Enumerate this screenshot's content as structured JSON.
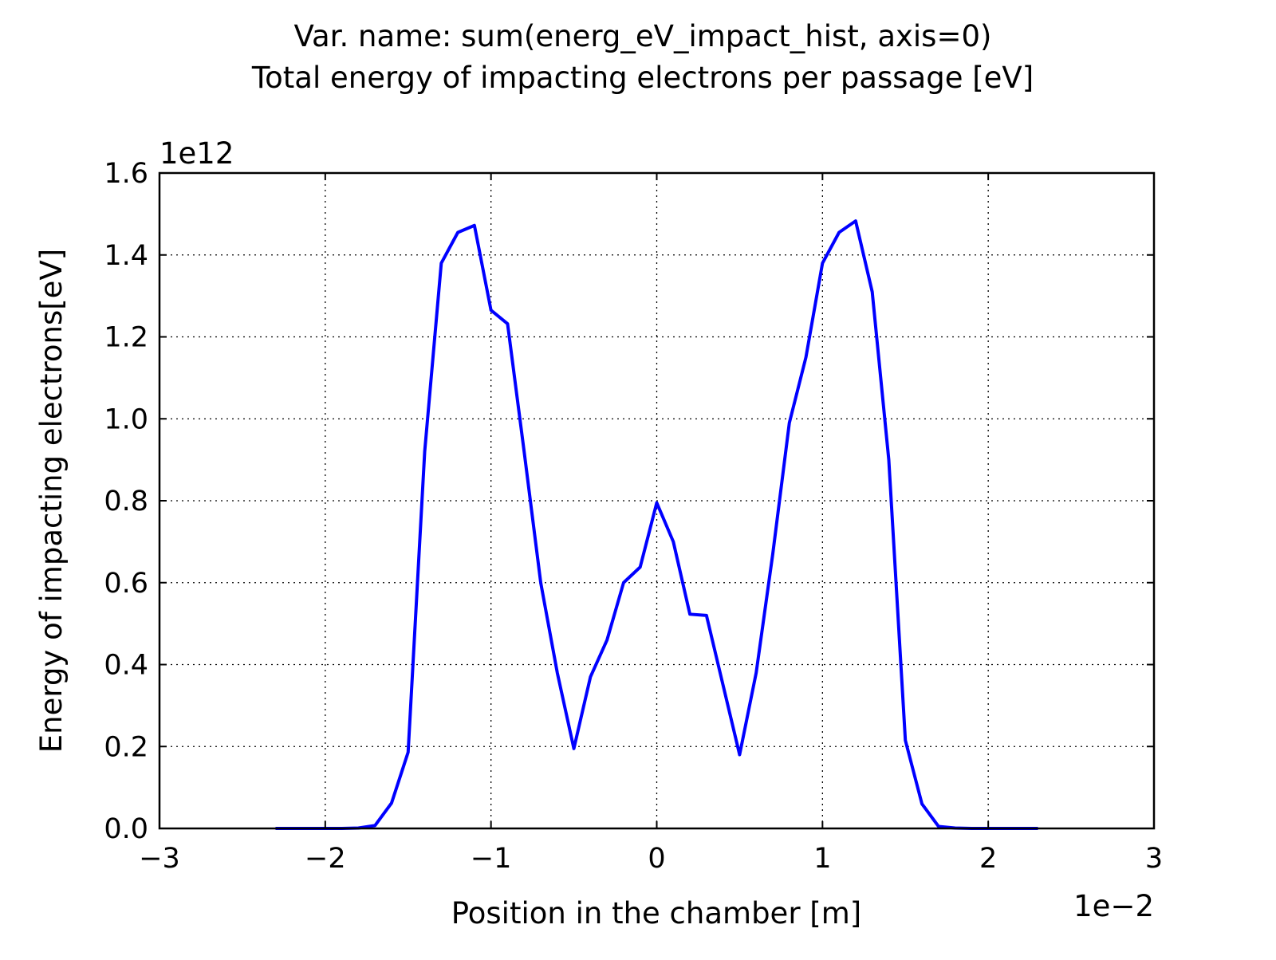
{
  "chart_data": {
    "type": "line",
    "title_lines": [
      "Var. name: sum(energ_eV_impact_hist, axis=0)",
      "Total energy of impacting electrons per passage [eV]"
    ],
    "xlabel": "Position in the chamber [m]",
    "ylabel": "Energy of impacting electrons[eV]",
    "x_offset_label": "1e−2",
    "y_offset_label": "1e12",
    "xlim": [
      -3,
      3
    ],
    "ylim": [
      0,
      1.6
    ],
    "x_ticks": [
      -3,
      -2,
      -1,
      0,
      1,
      2,
      3
    ],
    "x_tick_labels": [
      "−3",
      "−2",
      "−1",
      "0",
      "1",
      "2",
      "3"
    ],
    "y_ticks": [
      0,
      0.2,
      0.4,
      0.6,
      0.8,
      1.0,
      1.2,
      1.4,
      1.6
    ],
    "y_tick_labels": [
      "0.0",
      "0.2",
      "0.4",
      "0.6",
      "0.8",
      "1.0",
      "1.2",
      "1.4",
      "1.6"
    ],
    "grid": true,
    "line_color": "#0000ff",
    "series": [
      {
        "x": [
          -2.3,
          -2.2,
          -2.1,
          -2.0,
          -1.9,
          -1.8,
          -1.7,
          -1.6,
          -1.5,
          -1.4,
          -1.3,
          -1.2,
          -1.1,
          -1.0,
          -0.9,
          -0.8,
          -0.7,
          -0.6,
          -0.5,
          -0.4,
          -0.3,
          -0.2,
          -0.1,
          0.0,
          0.1,
          0.2,
          0.3,
          0.4,
          0.5,
          0.6,
          0.7,
          0.8,
          0.9,
          1.0,
          1.1,
          1.2,
          1.3,
          1.4,
          1.5,
          1.6,
          1.7,
          1.8,
          1.9,
          2.0,
          2.1,
          2.2,
          2.3
        ],
        "y": [
          0.0,
          0.0,
          0.0,
          0.0,
          0.0,
          0.001,
          0.007,
          0.062,
          0.186,
          0.92,
          1.38,
          1.455,
          1.472,
          1.265,
          1.232,
          0.92,
          0.6,
          0.38,
          0.195,
          0.37,
          0.46,
          0.6,
          0.638,
          0.795,
          0.7,
          0.523,
          0.52,
          0.35,
          0.18,
          0.38,
          0.67,
          0.99,
          1.15,
          1.38,
          1.455,
          1.483,
          1.31,
          0.9,
          0.215,
          0.06,
          0.005,
          0.001,
          0.0,
          0.0,
          0.0,
          0.0,
          0.0
        ]
      }
    ]
  }
}
